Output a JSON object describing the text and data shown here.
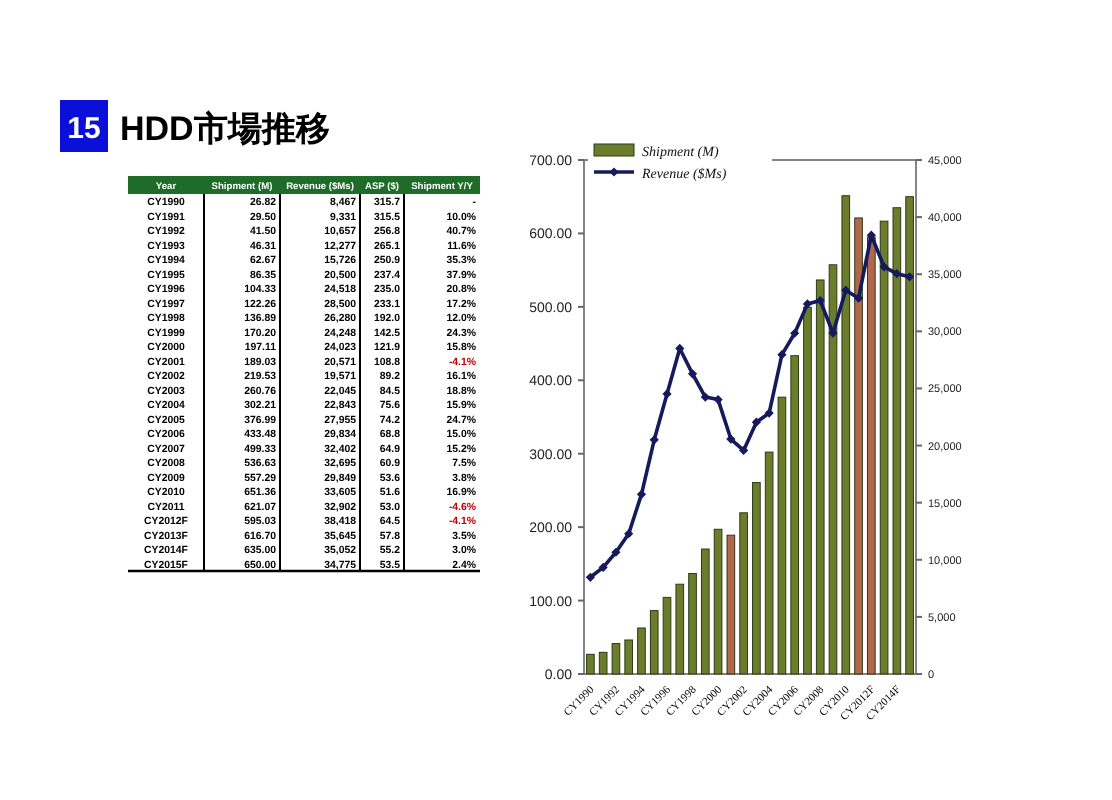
{
  "chart_data": [
    {
      "type": "heatmap",
      "title": "HDD市場推移",
      "annotations": [
        "15"
      ],
      "ylabel": "Year",
      "categories": [
        "Shipment (M)",
        "Revenue ($Ms)",
        "ASP ($)",
        "Shipment Y/Y"
      ],
      "y_categories": [
        "CY1990",
        "CY1991",
        "CY1992",
        "CY1993",
        "CY1994",
        "CY1995",
        "CY1996",
        "CY1997",
        "CY1998",
        "CY1999",
        "CY2000",
        "CY2001",
        "CY2002",
        "CY2003",
        "CY2004",
        "CY2005",
        "CY2006",
        "CY2007",
        "CY2008",
        "CY2009",
        "CY2010",
        "CY2011",
        "CY2012F",
        "CY2013F",
        "CY2014F",
        "CY2015F"
      ],
      "cells": [
        [
          26.82,
          8467,
          315.7,
          null
        ],
        [
          29.5,
          9331,
          315.5,
          10.0
        ],
        [
          41.5,
          10657,
          256.8,
          40.7
        ],
        [
          46.31,
          12277,
          265.1,
          11.6
        ],
        [
          62.67,
          15726,
          250.9,
          35.3
        ],
        [
          86.35,
          20500,
          237.4,
          37.9
        ],
        [
          104.33,
          24518,
          235.0,
          20.8
        ],
        [
          122.26,
          28500,
          233.1,
          17.2
        ],
        [
          136.89,
          26280,
          192.0,
          12.0
        ],
        [
          170.2,
          24248,
          142.5,
          24.3
        ],
        [
          197.11,
          24023,
          121.9,
          15.8
        ],
        [
          189.03,
          20571,
          108.8,
          -4.1
        ],
        [
          219.53,
          19571,
          89.2,
          16.1
        ],
        [
          260.76,
          22045,
          84.5,
          18.8
        ],
        [
          302.21,
          22843,
          75.6,
          15.9
        ],
        [
          376.99,
          27955,
          74.2,
          24.7
        ],
        [
          433.48,
          29834,
          68.8,
          15.0
        ],
        [
          499.33,
          32402,
          64.9,
          15.2
        ],
        [
          536.63,
          32695,
          60.9,
          7.5
        ],
        [
          557.29,
          29849,
          53.6,
          3.8
        ],
        [
          651.36,
          33605,
          51.6,
          16.9
        ],
        [
          621.07,
          32902,
          53.0,
          -4.6
        ],
        [
          595.03,
          38418,
          64.5,
          -4.1
        ],
        [
          616.7,
          35645,
          57.8,
          3.5
        ],
        [
          635.0,
          35052,
          55.2,
          3.0
        ],
        [
          650.0,
          34775,
          53.5,
          2.4
        ]
      ],
      "cell_labels": [
        [
          "26.82",
          "8,467",
          "315.7",
          "-"
        ],
        [
          "29.50",
          "9,331",
          "315.5",
          "10.0%"
        ],
        [
          "41.50",
          "10,657",
          "256.8",
          "40.7%"
        ],
        [
          "46.31",
          "12,277",
          "265.1",
          "11.6%"
        ],
        [
          "62.67",
          "15,726",
          "250.9",
          "35.3%"
        ],
        [
          "86.35",
          "20,500",
          "237.4",
          "37.9%"
        ],
        [
          "104.33",
          "24,518",
          "235.0",
          "20.8%"
        ],
        [
          "122.26",
          "28,500",
          "233.1",
          "17.2%"
        ],
        [
          "136.89",
          "26,280",
          "192.0",
          "12.0%"
        ],
        [
          "170.20",
          "24,248",
          "142.5",
          "24.3%"
        ],
        [
          "197.11",
          "24,023",
          "121.9",
          "15.8%"
        ],
        [
          "189.03",
          "20,571",
          "108.8",
          "-4.1%"
        ],
        [
          "219.53",
          "19,571",
          "89.2",
          "16.1%"
        ],
        [
          "260.76",
          "22,045",
          "84.5",
          "18.8%"
        ],
        [
          "302.21",
          "22,843",
          "75.6",
          "15.9%"
        ],
        [
          "376.99",
          "27,955",
          "74.2",
          "24.7%"
        ],
        [
          "433.48",
          "29,834",
          "68.8",
          "15.0%"
        ],
        [
          "499.33",
          "32,402",
          "64.9",
          "15.2%"
        ],
        [
          "536.63",
          "32,695",
          "60.9",
          "7.5%"
        ],
        [
          "557.29",
          "29,849",
          "53.6",
          "3.8%"
        ],
        [
          "651.36",
          "33,605",
          "51.6",
          "16.9%"
        ],
        [
          "621.07",
          "32,902",
          "53.0",
          "-4.6%"
        ],
        [
          "595.03",
          "38,418",
          "64.5",
          "-4.1%"
        ],
        [
          "616.70",
          "35,645",
          "57.8",
          "3.5%"
        ],
        [
          "635.00",
          "35,052",
          "55.2",
          "3.0%"
        ],
        [
          "650.00",
          "34,775",
          "53.5",
          "2.4%"
        ]
      ]
    },
    {
      "type": "bar",
      "legend": "top left",
      "marker": "diamond",
      "categories": [
        "CY1990",
        null,
        "CY1992",
        null,
        "CY1994",
        null,
        "CY1996",
        null,
        "CY1998",
        null,
        "CY2000",
        null,
        "CY2002",
        null,
        "CY2004",
        null,
        "CY2006",
        null,
        "CY2008",
        null,
        "CY2010",
        null,
        "CY2012F",
        null,
        "CY2014F",
        null
      ],
      "ylim": [
        0,
        700
      ],
      "yticks": [
        {
          "value": 0,
          "label": "0.00"
        },
        {
          "value": 100,
          "label": "100.00"
        },
        {
          "value": 200,
          "label": "200.00"
        },
        {
          "value": 300,
          "label": "300.00"
        },
        {
          "value": 400,
          "label": "400.00"
        },
        {
          "value": 500,
          "label": "500.00"
        },
        {
          "value": 600,
          "label": "600.00"
        },
        {
          "value": 700,
          "label": "700.00"
        }
      ],
      "y2lim": [
        0,
        45000
      ],
      "y2ticks": [
        0,
        {
          "value": 5000,
          "label": "5,000"
        },
        {
          "value": 10000,
          "label": "10,000"
        },
        {
          "value": 15000,
          "label": "15,000"
        },
        {
          "value": 20000,
          "label": "20,000"
        },
        {
          "value": 25000,
          "label": "25,000"
        },
        {
          "value": 30000,
          "label": "30,000"
        },
        {
          "value": 35000,
          "label": "35,000"
        },
        {
          "value": 40000,
          "label": "40,000"
        },
        {
          "value": 45000,
          "label": "45,000"
        }
      ],
      "series": [
        {
          "name": "Shipment (M)",
          "type": "bar",
          "color": "#6b7d2c",
          "colors": [
            "#6b7d2c",
            "#6b7d2c",
            "#6b7d2c",
            "#6b7d2c",
            "#6b7d2c",
            "#6b7d2c",
            "#6b7d2c",
            "#6b7d2c",
            "#6b7d2c",
            "#6b7d2c",
            "#6b7d2c",
            "#b0674c",
            "#6b7d2c",
            "#6b7d2c",
            "#6b7d2c",
            "#6b7d2c",
            "#6b7d2c",
            "#6b7d2c",
            "#6b7d2c",
            "#6b7d2c",
            "#6b7d2c",
            "#b0674c",
            "#b0674c",
            "#6b7d2c",
            "#6b7d2c",
            "#6b7d2c"
          ],
          "values": [
            26.82,
            29.5,
            41.5,
            46.31,
            62.67,
            86.35,
            104.33,
            122.26,
            136.89,
            170.2,
            197.11,
            189.03,
            219.53,
            260.76,
            302.21,
            376.99,
            433.48,
            499.33,
            536.63,
            557.29,
            651.36,
            621.07,
            595.03,
            616.7,
            635.0,
            650.0
          ]
        },
        {
          "name": "Revenue ($Ms)",
          "type": "line",
          "axis": "y2",
          "color": "#141a5c",
          "values": [
            8467,
            9331,
            10657,
            12277,
            15726,
            20500,
            24518,
            28500,
            26280,
            24248,
            24023,
            20571,
            19571,
            22045,
            22843,
            27955,
            29834,
            32402,
            32695,
            29849,
            33605,
            32902,
            38418,
            35645,
            35052,
            34775
          ]
        }
      ]
    }
  ]
}
